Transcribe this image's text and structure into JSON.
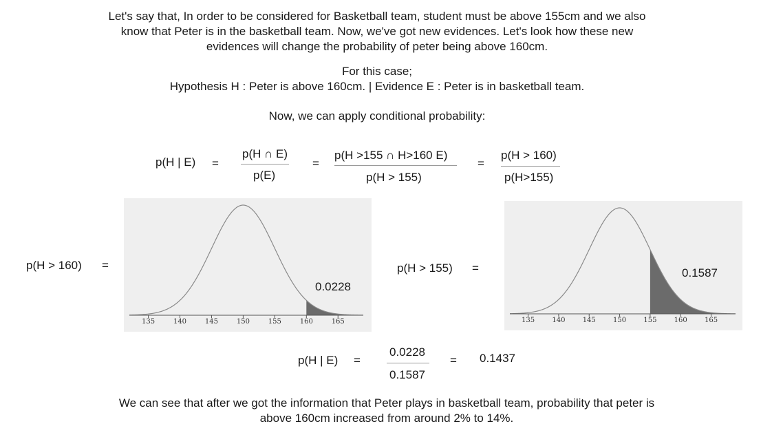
{
  "intro": {
    "line1": "Let's say that, In order to be considered for Basketball team, student must be above 155cm and we also",
    "line2": "know that Peter is in the basketball team. Now, we've got new evidences. Let's look how these new",
    "line3": "evidences will change the probability of peter being above 160cm."
  },
  "case": {
    "label": "For this case;",
    "hypothesis": "Hypothesis H : Peter is above 160cm. | Evidence E : Peter is in basketball team."
  },
  "conditional_intro": "Now, we can apply conditional probability:",
  "formula": {
    "lhs": "p(H | E)",
    "eq": "=",
    "f1_num": "p(H ∩ E)",
    "f1_den": "p(E)",
    "f2_num": "p(H >155  ∩ H>160 E)",
    "f2_den": "p(H > 155)",
    "f3_num": "p(H > 160)",
    "f3_den": "p(H>155)"
  },
  "left_label": "p(H > 160)",
  "middle_label": "p(H > 155)",
  "chart_data": [
    {
      "type": "area",
      "distribution": "normal",
      "mean": 150,
      "std": 5,
      "shaded_from": 160,
      "x_ticks": [
        "135",
        "140",
        "145",
        "150",
        "155",
        "160",
        "165"
      ],
      "xlim": [
        132,
        169
      ],
      "annotation": "0.0228",
      "curve_color": "#8a8a8a",
      "shade_color": "#6b6b6b",
      "background": "#efefef"
    },
    {
      "type": "area",
      "distribution": "normal",
      "mean": 150,
      "std": 5,
      "shaded_from": 155,
      "x_ticks": [
        "135",
        "140",
        "145",
        "150",
        "155",
        "160",
        "165"
      ],
      "xlim": [
        132,
        169
      ],
      "annotation": "0.1587",
      "curve_color": "#8a8a8a",
      "shade_color": "#6b6b6b",
      "background": "#efefef"
    }
  ],
  "result": {
    "lhs": "p(H | E)",
    "num": "0.0228",
    "den": "0.1587",
    "value": "0.1437"
  },
  "conclusion": {
    "line1": "We can see that after we got the information that Peter plays in basketball team, probability that peter is",
    "line2": "above 160cm increased from around 2% to 14%."
  }
}
